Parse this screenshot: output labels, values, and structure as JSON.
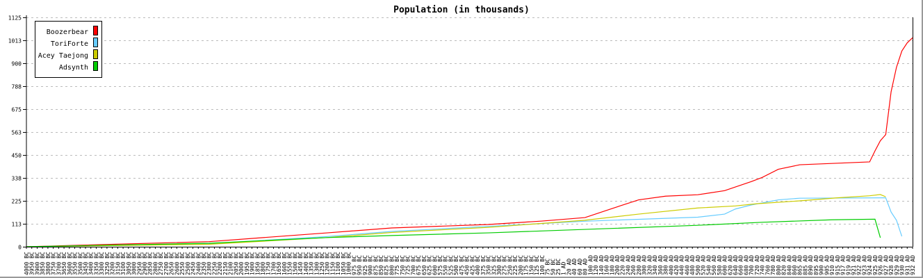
{
  "chart_data": {
    "type": "line",
    "title": "Population (in thousands)",
    "xlabel": "",
    "ylabel": "",
    "ylim": [
      0,
      1125
    ],
    "y_ticks": [
      "0",
      "113",
      "225",
      "338",
      "450",
      "563",
      "675",
      "788",
      "900",
      "1013",
      "1125"
    ],
    "grid": "horizontal dashed",
    "legend_position": "top-left",
    "categories": [
      "4000 BC",
      "3950 BC",
      "3900 BC",
      "3850 BC",
      "3800 BC",
      "3750 BC",
      "3700 BC",
      "3650 BC",
      "3600 BC",
      "3550 BC",
      "3500 BC",
      "3450 BC",
      "3400 BC",
      "3350 BC",
      "3300 BC",
      "3250 BC",
      "3200 BC",
      "3150 BC",
      "3100 BC",
      "3050 BC",
      "3000 BC",
      "2950 BC",
      "2900 BC",
      "2850 BC",
      "2800 BC",
      "2750 BC",
      "2700 BC",
      "2650 BC",
      "2600 BC",
      "2550 BC",
      "2500 BC",
      "2450 BC",
      "2400 BC",
      "2350 BC",
      "2300 BC",
      "2250 BC",
      "2200 BC",
      "2150 BC",
      "2100 BC",
      "2050 BC",
      "2000 BC",
      "1950 BC",
      "1900 BC",
      "1850 BC",
      "1800 BC",
      "1750 BC",
      "1700 BC",
      "1650 BC",
      "1600 BC",
      "1550 BC",
      "1500 BC",
      "1450 BC",
      "1400 BC",
      "1350 BC",
      "1300 BC",
      "1250 BC",
      "1200 BC",
      "1150 BC",
      "1100 BC",
      "1050 BC",
      "1000 BC",
      "975 BC",
      "950 BC",
      "925 BC",
      "900 BC",
      "875 BC",
      "850 BC",
      "825 BC",
      "800 BC",
      "775 BC",
      "750 BC",
      "725 BC",
      "700 BC",
      "675 BC",
      "650 BC",
      "625 BC",
      "600 BC",
      "575 BC",
      "550 BC",
      "525 BC",
      "500 BC",
      "475 BC",
      "450 BC",
      "425 BC",
      "400 BC",
      "375 BC",
      "350 BC",
      "325 BC",
      "300 BC",
      "275 BC",
      "250 BC",
      "225 BC",
      "200 BC",
      "175 BC",
      "150 BC",
      "125 BC",
      "100 BC",
      "75 BC",
      "50 BC",
      "25 BC",
      "1 AD",
      "20 AD",
      "40 AD",
      "60 AD",
      "80 AD",
      "100 AD",
      "120 AD",
      "140 AD",
      "160 AD",
      "180 AD",
      "200 AD",
      "220 AD",
      "240 AD",
      "260 AD",
      "280 AD",
      "300 AD",
      "320 AD",
      "340 AD",
      "360 AD",
      "380 AD",
      "400 AD",
      "420 AD",
      "440 AD",
      "460 AD",
      "480 AD",
      "500 AD",
      "520 AD",
      "540 AD",
      "560 AD",
      "580 AD",
      "600 AD",
      "620 AD",
      "640 AD",
      "660 AD",
      "680 AD",
      "700 AD",
      "720 AD",
      "740 AD",
      "760 AD",
      "780 AD",
      "800 AD",
      "820 AD",
      "840 AD",
      "860 AD",
      "865 AD",
      "885 AD",
      "890 AD",
      "895 AD",
      "900 AD",
      "905 AD",
      "910 AD",
      "915 AD",
      "917 AD",
      "919 AD",
      "921 AD",
      "922 AD",
      "923 AD",
      "924 AD",
      "925 AD",
      "926 AD",
      "927 AD",
      "928 AD",
      "929 AD",
      "930 AD",
      "931 AD",
      "932 AD"
    ],
    "series": [
      {
        "name": "Boozerbear",
        "color": "#ff0000",
        "points": [
          [
            "4000 BC",
            0
          ],
          [
            "2300 BC",
            25
          ],
          [
            "1200 BC",
            68
          ],
          [
            "800 BC",
            92
          ],
          [
            "350 BC",
            109
          ],
          [
            "100 BC",
            126
          ],
          [
            "80 AD",
            143
          ],
          [
            "180 AD",
            187
          ],
          [
            "280 AD",
            230
          ],
          [
            "380 AD",
            248
          ],
          [
            "500 AD",
            255
          ],
          [
            "600 AD",
            275
          ],
          [
            "700 AD",
            320
          ],
          [
            "740 AD",
            340
          ],
          [
            "800 AD",
            380
          ],
          [
            "865 AD",
            402
          ],
          [
            "924 AD",
            416
          ],
          [
            "925 AD",
            470
          ],
          [
            "926 AD",
            520
          ],
          [
            "927 AD",
            550
          ],
          [
            "928 AD",
            760
          ],
          [
            "929 AD",
            880
          ],
          [
            "930 AD",
            960
          ],
          [
            "931 AD",
            1000
          ],
          [
            "932 AD",
            1025
          ]
        ]
      },
      {
        "name": "ToriForte",
        "color": "#66ccff",
        "points": [
          [
            "4000 BC",
            0
          ],
          [
            "2300 BC",
            15
          ],
          [
            "1200 BC",
            50
          ],
          [
            "800 BC",
            75
          ],
          [
            "350 BC",
            100
          ],
          [
            "80 AD",
            125
          ],
          [
            "500 AD",
            145
          ],
          [
            "600 AD",
            160
          ],
          [
            "640 AD",
            185
          ],
          [
            "700 AD",
            205
          ],
          [
            "800 AD",
            230
          ],
          [
            "865 AD",
            238
          ],
          [
            "927 AD",
            240
          ],
          [
            "928 AD",
            170
          ],
          [
            "929 AD",
            130
          ],
          [
            "930 AD",
            51
          ]
        ]
      },
      {
        "name": "Acey Taejong",
        "color": "#cccc00",
        "points": [
          [
            "4000 BC",
            0
          ],
          [
            "2300 BC",
            12
          ],
          [
            "1200 BC",
            45
          ],
          [
            "800 BC",
            70
          ],
          [
            "350 BC",
            95
          ],
          [
            "80 AD",
            130
          ],
          [
            "280 AD",
            160
          ],
          [
            "500 AD",
            190
          ],
          [
            "640 AD",
            200
          ],
          [
            "720 AD",
            211
          ],
          [
            "865 AD",
            225
          ],
          [
            "915 AD",
            240
          ],
          [
            "924 AD",
            250
          ],
          [
            "926 AD",
            256
          ],
          [
            "927 AD",
            245
          ]
        ]
      },
      {
        "name": "Adsynth",
        "color": "#00cc00",
        "points": [
          [
            "4000 BC",
            0
          ],
          [
            "2300 BC",
            17
          ],
          [
            "1200 BC",
            45
          ],
          [
            "800 BC",
            55
          ],
          [
            "350 BC",
            68
          ],
          [
            "80 AD",
            85
          ],
          [
            "500 AD",
            105
          ],
          [
            "740 AD",
            120
          ],
          [
            "910 AD",
            132
          ],
          [
            "925 AD",
            135
          ],
          [
            "926 AD",
            44
          ]
        ]
      }
    ]
  }
}
